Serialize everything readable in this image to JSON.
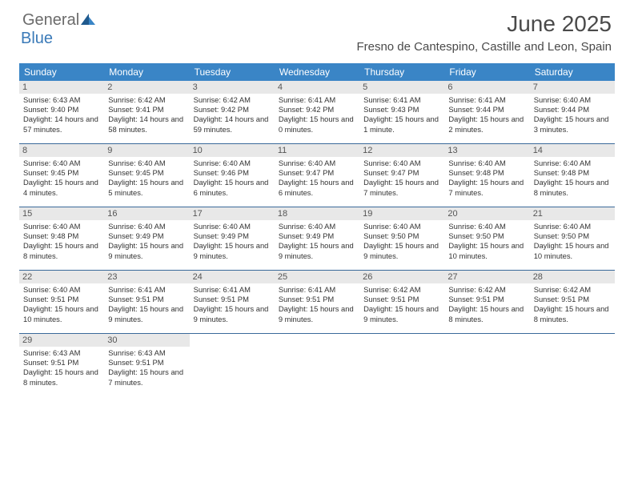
{
  "logo": {
    "text1": "General",
    "text2": "Blue"
  },
  "title": "June 2025",
  "location": "Fresno de Cantespino, Castille and Leon, Spain",
  "colors": {
    "header_bg": "#3a85c6",
    "header_text": "#ffffff",
    "daynum_bg": "#e8e8e8",
    "week_border": "#3a6a9a",
    "logo_gray": "#6b6b6b",
    "logo_blue": "#3a7ab8"
  },
  "day_names": [
    "Sunday",
    "Monday",
    "Tuesday",
    "Wednesday",
    "Thursday",
    "Friday",
    "Saturday"
  ],
  "weeks": [
    [
      {
        "n": "1",
        "sr": "6:43 AM",
        "ss": "9:40 PM",
        "dl": "14 hours and 57 minutes."
      },
      {
        "n": "2",
        "sr": "6:42 AM",
        "ss": "9:41 PM",
        "dl": "14 hours and 58 minutes."
      },
      {
        "n": "3",
        "sr": "6:42 AM",
        "ss": "9:42 PM",
        "dl": "14 hours and 59 minutes."
      },
      {
        "n": "4",
        "sr": "6:41 AM",
        "ss": "9:42 PM",
        "dl": "15 hours and 0 minutes."
      },
      {
        "n": "5",
        "sr": "6:41 AM",
        "ss": "9:43 PM",
        "dl": "15 hours and 1 minute."
      },
      {
        "n": "6",
        "sr": "6:41 AM",
        "ss": "9:44 PM",
        "dl": "15 hours and 2 minutes."
      },
      {
        "n": "7",
        "sr": "6:40 AM",
        "ss": "9:44 PM",
        "dl": "15 hours and 3 minutes."
      }
    ],
    [
      {
        "n": "8",
        "sr": "6:40 AM",
        "ss": "9:45 PM",
        "dl": "15 hours and 4 minutes."
      },
      {
        "n": "9",
        "sr": "6:40 AM",
        "ss": "9:45 PM",
        "dl": "15 hours and 5 minutes."
      },
      {
        "n": "10",
        "sr": "6:40 AM",
        "ss": "9:46 PM",
        "dl": "15 hours and 6 minutes."
      },
      {
        "n": "11",
        "sr": "6:40 AM",
        "ss": "9:47 PM",
        "dl": "15 hours and 6 minutes."
      },
      {
        "n": "12",
        "sr": "6:40 AM",
        "ss": "9:47 PM",
        "dl": "15 hours and 7 minutes."
      },
      {
        "n": "13",
        "sr": "6:40 AM",
        "ss": "9:48 PM",
        "dl": "15 hours and 7 minutes."
      },
      {
        "n": "14",
        "sr": "6:40 AM",
        "ss": "9:48 PM",
        "dl": "15 hours and 8 minutes."
      }
    ],
    [
      {
        "n": "15",
        "sr": "6:40 AM",
        "ss": "9:48 PM",
        "dl": "15 hours and 8 minutes."
      },
      {
        "n": "16",
        "sr": "6:40 AM",
        "ss": "9:49 PM",
        "dl": "15 hours and 9 minutes."
      },
      {
        "n": "17",
        "sr": "6:40 AM",
        "ss": "9:49 PM",
        "dl": "15 hours and 9 minutes."
      },
      {
        "n": "18",
        "sr": "6:40 AM",
        "ss": "9:49 PM",
        "dl": "15 hours and 9 minutes."
      },
      {
        "n": "19",
        "sr": "6:40 AM",
        "ss": "9:50 PM",
        "dl": "15 hours and 9 minutes."
      },
      {
        "n": "20",
        "sr": "6:40 AM",
        "ss": "9:50 PM",
        "dl": "15 hours and 10 minutes."
      },
      {
        "n": "21",
        "sr": "6:40 AM",
        "ss": "9:50 PM",
        "dl": "15 hours and 10 minutes."
      }
    ],
    [
      {
        "n": "22",
        "sr": "6:40 AM",
        "ss": "9:51 PM",
        "dl": "15 hours and 10 minutes."
      },
      {
        "n": "23",
        "sr": "6:41 AM",
        "ss": "9:51 PM",
        "dl": "15 hours and 9 minutes."
      },
      {
        "n": "24",
        "sr": "6:41 AM",
        "ss": "9:51 PM",
        "dl": "15 hours and 9 minutes."
      },
      {
        "n": "25",
        "sr": "6:41 AM",
        "ss": "9:51 PM",
        "dl": "15 hours and 9 minutes."
      },
      {
        "n": "26",
        "sr": "6:42 AM",
        "ss": "9:51 PM",
        "dl": "15 hours and 9 minutes."
      },
      {
        "n": "27",
        "sr": "6:42 AM",
        "ss": "9:51 PM",
        "dl": "15 hours and 8 minutes."
      },
      {
        "n": "28",
        "sr": "6:42 AM",
        "ss": "9:51 PM",
        "dl": "15 hours and 8 minutes."
      }
    ],
    [
      {
        "n": "29",
        "sr": "6:43 AM",
        "ss": "9:51 PM",
        "dl": "15 hours and 8 minutes."
      },
      {
        "n": "30",
        "sr": "6:43 AM",
        "ss": "9:51 PM",
        "dl": "15 hours and 7 minutes."
      },
      null,
      null,
      null,
      null,
      null
    ]
  ],
  "labels": {
    "sunrise": "Sunrise: ",
    "sunset": "Sunset: ",
    "daylight": "Daylight: "
  }
}
